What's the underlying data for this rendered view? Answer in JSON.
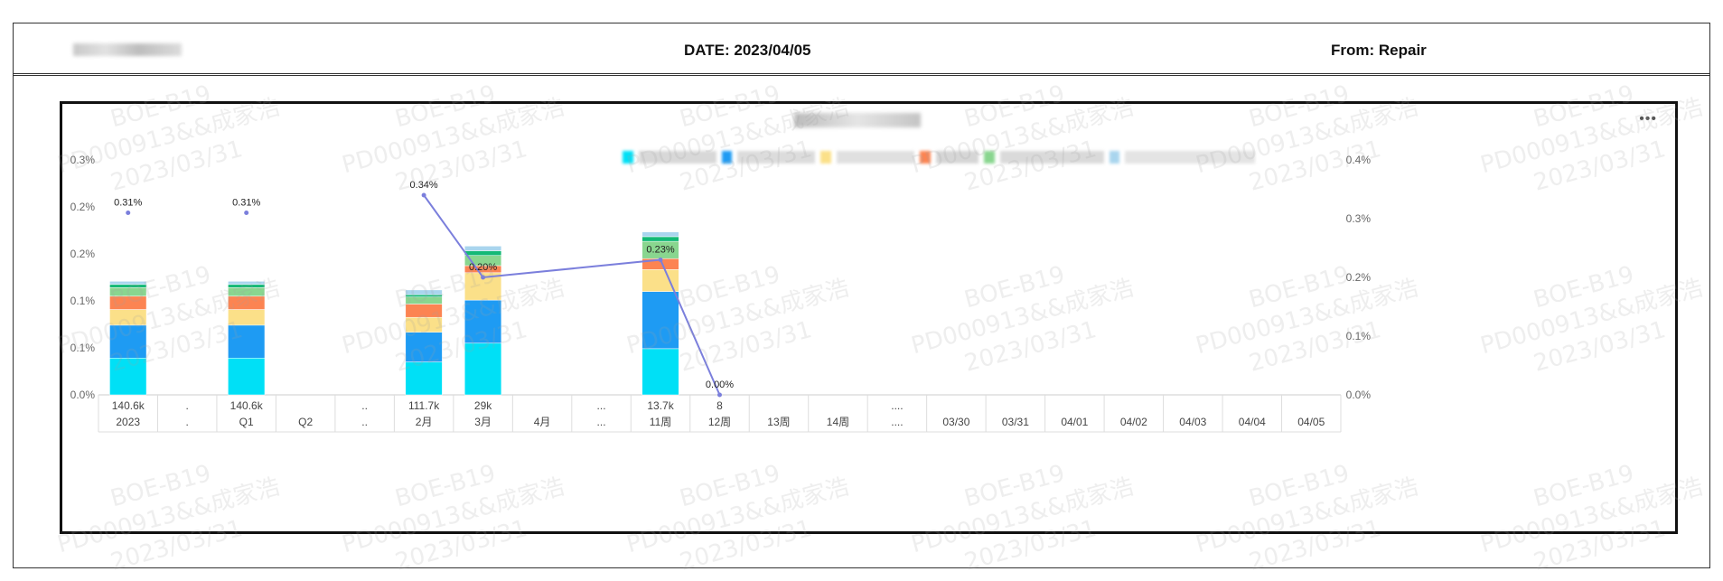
{
  "header": {
    "date": "DATE: 2023/04/05",
    "from": "From: Repair"
  },
  "watermark": {
    "line1": "BOE-B19",
    "line2": "PD000913&&成家浩",
    "line3": "2023/03/31"
  },
  "toolbar": {
    "more_label": "•••"
  },
  "chart_data": {
    "type": "bar",
    "stacked": true,
    "grid": false,
    "left_axis": {
      "ticks": [
        "0.0%",
        "0.1%",
        "0.1%",
        "0.2%",
        "0.2%",
        "0.3%"
      ],
      "range": [
        0,
        0.3
      ]
    },
    "right_axis": {
      "ticks": [
        "0.0%",
        "0.1%",
        "0.2%",
        "0.3%",
        "0.4%"
      ],
      "range": [
        0,
        0.4
      ]
    },
    "categories": [
      "2023",
      ".",
      "Q1",
      "Q2",
      "..",
      "2月",
      "3月",
      "4月",
      "...",
      "11周",
      "12周",
      "13周",
      "14周",
      "....",
      "03/30",
      "03/31",
      "04/01",
      "04/02",
      "04/03",
      "04/04",
      "04/05"
    ],
    "counts": [
      "140.6k",
      ".",
      "140.6k",
      "",
      "..",
      "111.7k",
      "29k",
      "",
      "...",
      "13.7k",
      "8",
      "",
      "",
      "....",
      "",
      "",
      "",
      "",
      "",
      "",
      ""
    ],
    "series_colors": [
      "#00e0f6",
      "#1e9bf3",
      "#fbe089",
      "#fc8452",
      "#89d68f",
      "#13b976",
      "#a9d5ee"
    ],
    "stacks": [
      [
        0.047,
        0.042,
        0.02,
        0.017,
        0.011,
        0.004,
        0.004
      ],
      null,
      [
        0.047,
        0.042,
        0.02,
        0.017,
        0.011,
        0.004,
        0.004
      ],
      null,
      null,
      [
        0.042,
        0.038,
        0.019,
        0.017,
        0.009,
        0.003,
        0.006
      ],
      [
        0.066,
        0.055,
        0.035,
        0.009,
        0.013,
        0.006,
        0.006
      ],
      null,
      null,
      [
        0.059,
        0.073,
        0.028,
        0.014,
        0.022,
        0.006,
        0.006
      ],
      null,
      null,
      null,
      null,
      null,
      null,
      null,
      null,
      null,
      null,
      null
    ],
    "line": {
      "color": "#7b7fdc",
      "points": [
        {
          "index": 0,
          "value": 0.31,
          "label": "0.31%",
          "connect": false
        },
        {
          "index": 2,
          "value": 0.31,
          "label": "0.31%",
          "connect": false
        },
        {
          "index": 5,
          "value": 0.34,
          "label": "0.34%",
          "connect": true
        },
        {
          "index": 6,
          "value": 0.2,
          "label": "0.20%",
          "connect": true
        },
        {
          "index": 9,
          "value": 0.23,
          "label": "0.23%",
          "connect": true
        },
        {
          "index": 10,
          "value": 0.0,
          "label": "0.00%",
          "connect": true
        }
      ]
    }
  }
}
